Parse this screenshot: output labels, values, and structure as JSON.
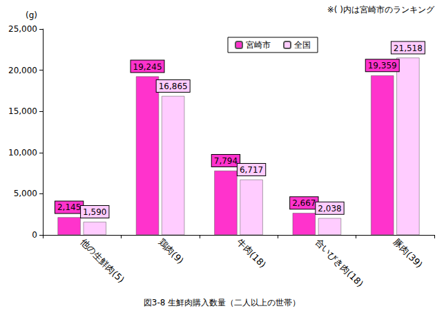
{
  "chart_data": {
    "type": "bar",
    "title": "図3-8 生鮮肉購入数量（二人以上の世帯）",
    "ylabel": "(g)",
    "annotations": [
      "※( )内は宮崎市のランキング"
    ],
    "categories": [
      "他の生鮮肉(5)",
      "鶏肉(9)",
      "牛肉(18)",
      "合いびき肉(18)",
      "豚肉(39)"
    ],
    "series": [
      {
        "name": "宮崎市",
        "color": "#ff33cc",
        "values": [
          2145,
          19245,
          7794,
          2667,
          19359
        ],
        "value_labels": [
          "2,145",
          "19,245",
          "7,794",
          "2,667",
          "19,359"
        ]
      },
      {
        "name": "全国",
        "color": "#ffccff",
        "values": [
          1590,
          16865,
          6717,
          2038,
          21518
        ],
        "value_labels": [
          "1,590",
          "16,865",
          "6,717",
          "2,038",
          "21,518"
        ]
      }
    ],
    "ylim": [
      0,
      25000
    ],
    "yticks": [
      0,
      {
        "value": 5000,
        "label": "5,000"
      },
      {
        "value": 10000,
        "label": "10,000"
      },
      {
        "value": 15000,
        "label": "15,000"
      },
      {
        "value": 20000,
        "label": "20,000"
      },
      {
        "value": 25000,
        "label": "25,000"
      }
    ],
    "grid": false,
    "legend": "top",
    "data_labels": true
  }
}
